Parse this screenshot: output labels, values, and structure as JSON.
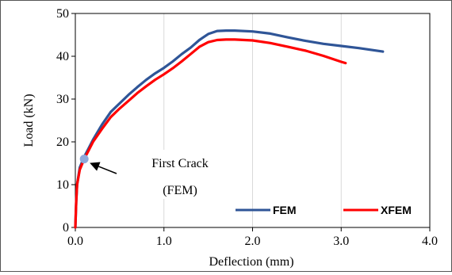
{
  "chart_data": {
    "type": "line",
    "title": "",
    "xlabel": "Deflection  (mm)",
    "ylabel": "Load (kN)",
    "xlim": [
      0,
      4
    ],
    "ylim": [
      0,
      50
    ],
    "x_ticks": [
      0,
      1,
      2,
      3,
      4
    ],
    "x_tick_labels": [
      "0.0",
      "1.0",
      "2.0",
      "3.0",
      "4.0"
    ],
    "y_ticks": [
      0,
      10,
      20,
      30,
      40,
      50
    ],
    "y_tick_labels": [
      "0",
      "10",
      "20",
      "30",
      "40",
      "50"
    ],
    "grid": "vertical",
    "legend_position": "bottom-right",
    "series": [
      {
        "name": "FEM",
        "color": "#2F5597",
        "points": [
          [
            0.0,
            0
          ],
          [
            0.01,
            6
          ],
          [
            0.02,
            10
          ],
          [
            0.05,
            14
          ],
          [
            0.1,
            16.5
          ],
          [
            0.15,
            18.5
          ],
          [
            0.2,
            20.5
          ],
          [
            0.3,
            24
          ],
          [
            0.4,
            27
          ],
          [
            0.5,
            29
          ],
          [
            0.6,
            31
          ],
          [
            0.7,
            32.8
          ],
          [
            0.8,
            34.5
          ],
          [
            0.9,
            36
          ],
          [
            1.0,
            37.3
          ],
          [
            1.1,
            38.8
          ],
          [
            1.2,
            40.5
          ],
          [
            1.3,
            42
          ],
          [
            1.4,
            43.8
          ],
          [
            1.5,
            45.2
          ],
          [
            1.6,
            45.9
          ],
          [
            1.7,
            46.0
          ],
          [
            1.8,
            46.0
          ],
          [
            2.0,
            45.8
          ],
          [
            2.2,
            45.3
          ],
          [
            2.4,
            44.4
          ],
          [
            2.6,
            43.6
          ],
          [
            2.8,
            42.9
          ],
          [
            3.0,
            42.4
          ],
          [
            3.2,
            41.9
          ],
          [
            3.47,
            41.1
          ]
        ]
      },
      {
        "name": "XFEM",
        "color": "#FF0000",
        "points": [
          [
            0.0,
            0
          ],
          [
            0.01,
            6
          ],
          [
            0.02,
            10
          ],
          [
            0.05,
            13.5
          ],
          [
            0.1,
            16
          ],
          [
            0.15,
            18
          ],
          [
            0.2,
            20
          ],
          [
            0.3,
            23
          ],
          [
            0.4,
            25.8
          ],
          [
            0.5,
            27.8
          ],
          [
            0.6,
            29.6
          ],
          [
            0.7,
            31.4
          ],
          [
            0.8,
            33
          ],
          [
            0.9,
            34.5
          ],
          [
            1.0,
            35.8
          ],
          [
            1.1,
            37.2
          ],
          [
            1.2,
            38.8
          ],
          [
            1.3,
            40.5
          ],
          [
            1.4,
            42.2
          ],
          [
            1.5,
            43.3
          ],
          [
            1.6,
            43.8
          ],
          [
            1.7,
            43.9
          ],
          [
            1.8,
            43.9
          ],
          [
            2.0,
            43.7
          ],
          [
            2.2,
            43.1
          ],
          [
            2.4,
            42.2
          ],
          [
            2.6,
            41.3
          ],
          [
            2.8,
            40.1
          ],
          [
            3.0,
            38.7
          ],
          [
            3.05,
            38.4
          ]
        ]
      }
    ],
    "annotation": {
      "line1": "First Crack",
      "line2": "(FEM)",
      "marker_x": 0.1,
      "marker_y": 16,
      "marker_color": "#8EA9DB"
    }
  }
}
